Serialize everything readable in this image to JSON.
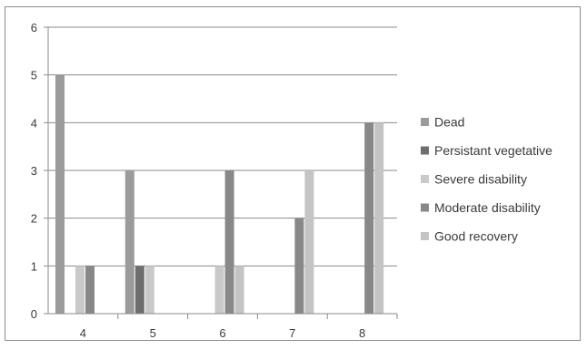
{
  "chart_data": {
    "type": "bar",
    "categories": [
      "4",
      "5",
      "6",
      "7",
      "8"
    ],
    "series": [
      {
        "name": "Dead",
        "values": [
          5,
          3,
          0,
          0,
          0
        ],
        "color": "#9b9b9b"
      },
      {
        "name": "Persistant vegetative",
        "values": [
          0,
          1,
          0,
          0,
          0
        ],
        "color": "#6e6e6e"
      },
      {
        "name": "Severe disability",
        "values": [
          1,
          1,
          1,
          0,
          0
        ],
        "color": "#c9c9c9"
      },
      {
        "name": "Moderate disability",
        "values": [
          1,
          0,
          3,
          2,
          4
        ],
        "color": "#888888"
      },
      {
        "name": "Good recovery",
        "values": [
          0,
          0,
          1,
          3,
          4
        ],
        "color": "#c4c4c4"
      }
    ],
    "y_ticks": [
      "0",
      "1",
      "2",
      "3",
      "4",
      "5",
      "6"
    ],
    "ylim": [
      0,
      6
    ],
    "grid": true,
    "legend_position": "right"
  }
}
